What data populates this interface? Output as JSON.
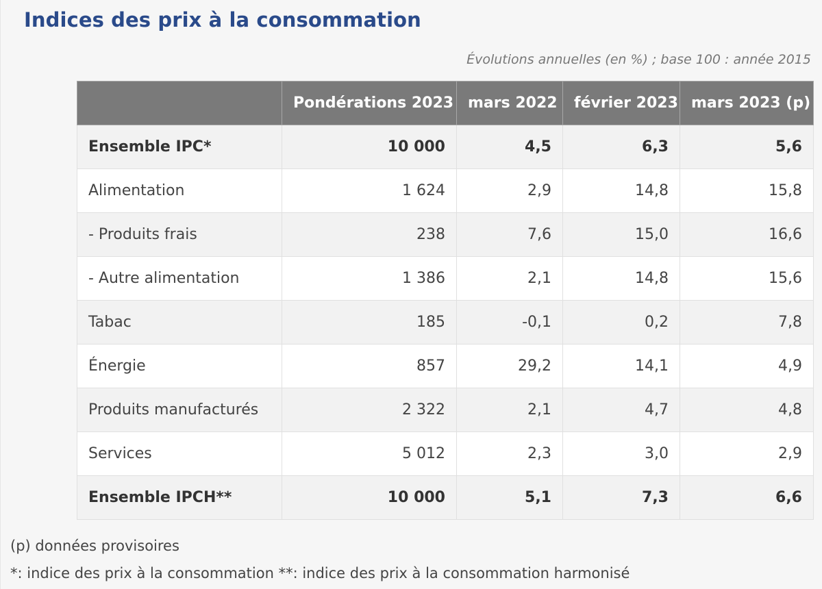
{
  "title": "Indices des prix à la consommation",
  "subtitle": "Évolutions annuelles (en %) ; base 100 : année 2015",
  "table": {
    "headers": [
      "",
      "Pondérations 2023",
      "mars 2022",
      "février 2023",
      "mars 2023 (p)"
    ],
    "rows": [
      {
        "label": "Ensemble IPC*",
        "values": [
          "10 000",
          "4,5",
          "6,3",
          "5,6"
        ],
        "bold": true
      },
      {
        "label": "Alimentation",
        "values": [
          "1 624",
          "2,9",
          "14,8",
          "15,8"
        ],
        "bold": false
      },
      {
        "label": "- Produits frais",
        "values": [
          "238",
          "7,6",
          "15,0",
          "16,6"
        ],
        "bold": false
      },
      {
        "label": "- Autre alimentation",
        "values": [
          "1 386",
          "2,1",
          "14,8",
          "15,6"
        ],
        "bold": false
      },
      {
        "label": "Tabac",
        "values": [
          "185",
          "-0,1",
          "0,2",
          "7,8"
        ],
        "bold": false
      },
      {
        "label": "Énergie",
        "values": [
          "857",
          "29,2",
          "14,1",
          "4,9"
        ],
        "bold": false
      },
      {
        "label": "Produits manufacturés",
        "values": [
          "2 322",
          "2,1",
          "4,7",
          "4,8"
        ],
        "bold": false
      },
      {
        "label": "Services",
        "values": [
          "5 012",
          "2,3",
          "3,0",
          "2,9"
        ],
        "bold": false
      },
      {
        "label": "Ensemble IPCH**",
        "values": [
          "10 000",
          "5,1",
          "7,3",
          "6,6"
        ],
        "bold": true
      }
    ]
  },
  "notes": {
    "provisional": "(p) données provisoires",
    "definitions": "*: indice des prix à la consommation **: indice des prix à la consommation harmonisé"
  }
}
